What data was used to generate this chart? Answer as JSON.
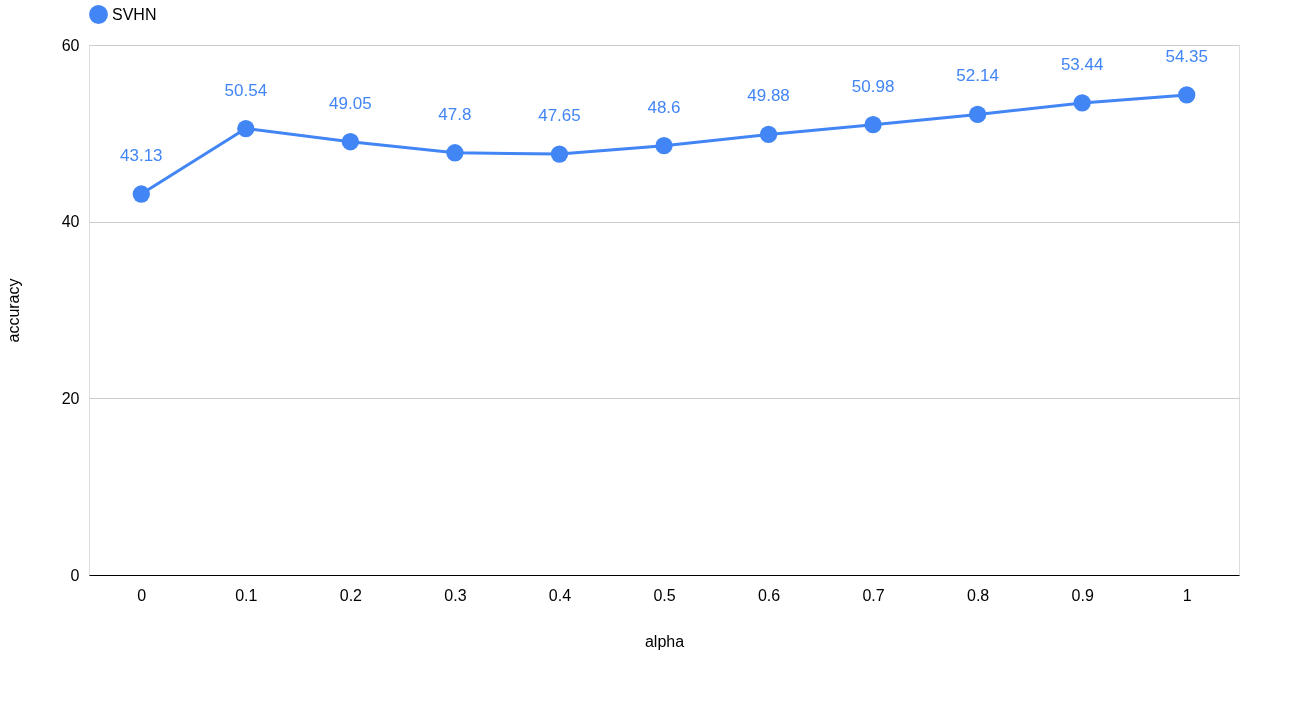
{
  "chart_data": {
    "type": "line",
    "xlabel": "alpha",
    "ylabel": "accuracy",
    "categories": [
      "0",
      "0.1",
      "0.2",
      "0.3",
      "0.4",
      "0.5",
      "0.6",
      "0.7",
      "0.8",
      "0.9",
      "1"
    ],
    "series": [
      {
        "name": "SVHN",
        "color": "#4285f4",
        "values": [
          43.13,
          50.54,
          49.05,
          47.8,
          47.65,
          48.6,
          49.88,
          50.98,
          52.14,
          53.44,
          54.35
        ]
      }
    ],
    "ylim": [
      0,
      60
    ],
    "yticks": [
      0,
      20,
      40,
      60
    ],
    "grid": "y",
    "legend": "top",
    "marker": "circle",
    "line_style": "solid",
    "data_labels": true
  }
}
